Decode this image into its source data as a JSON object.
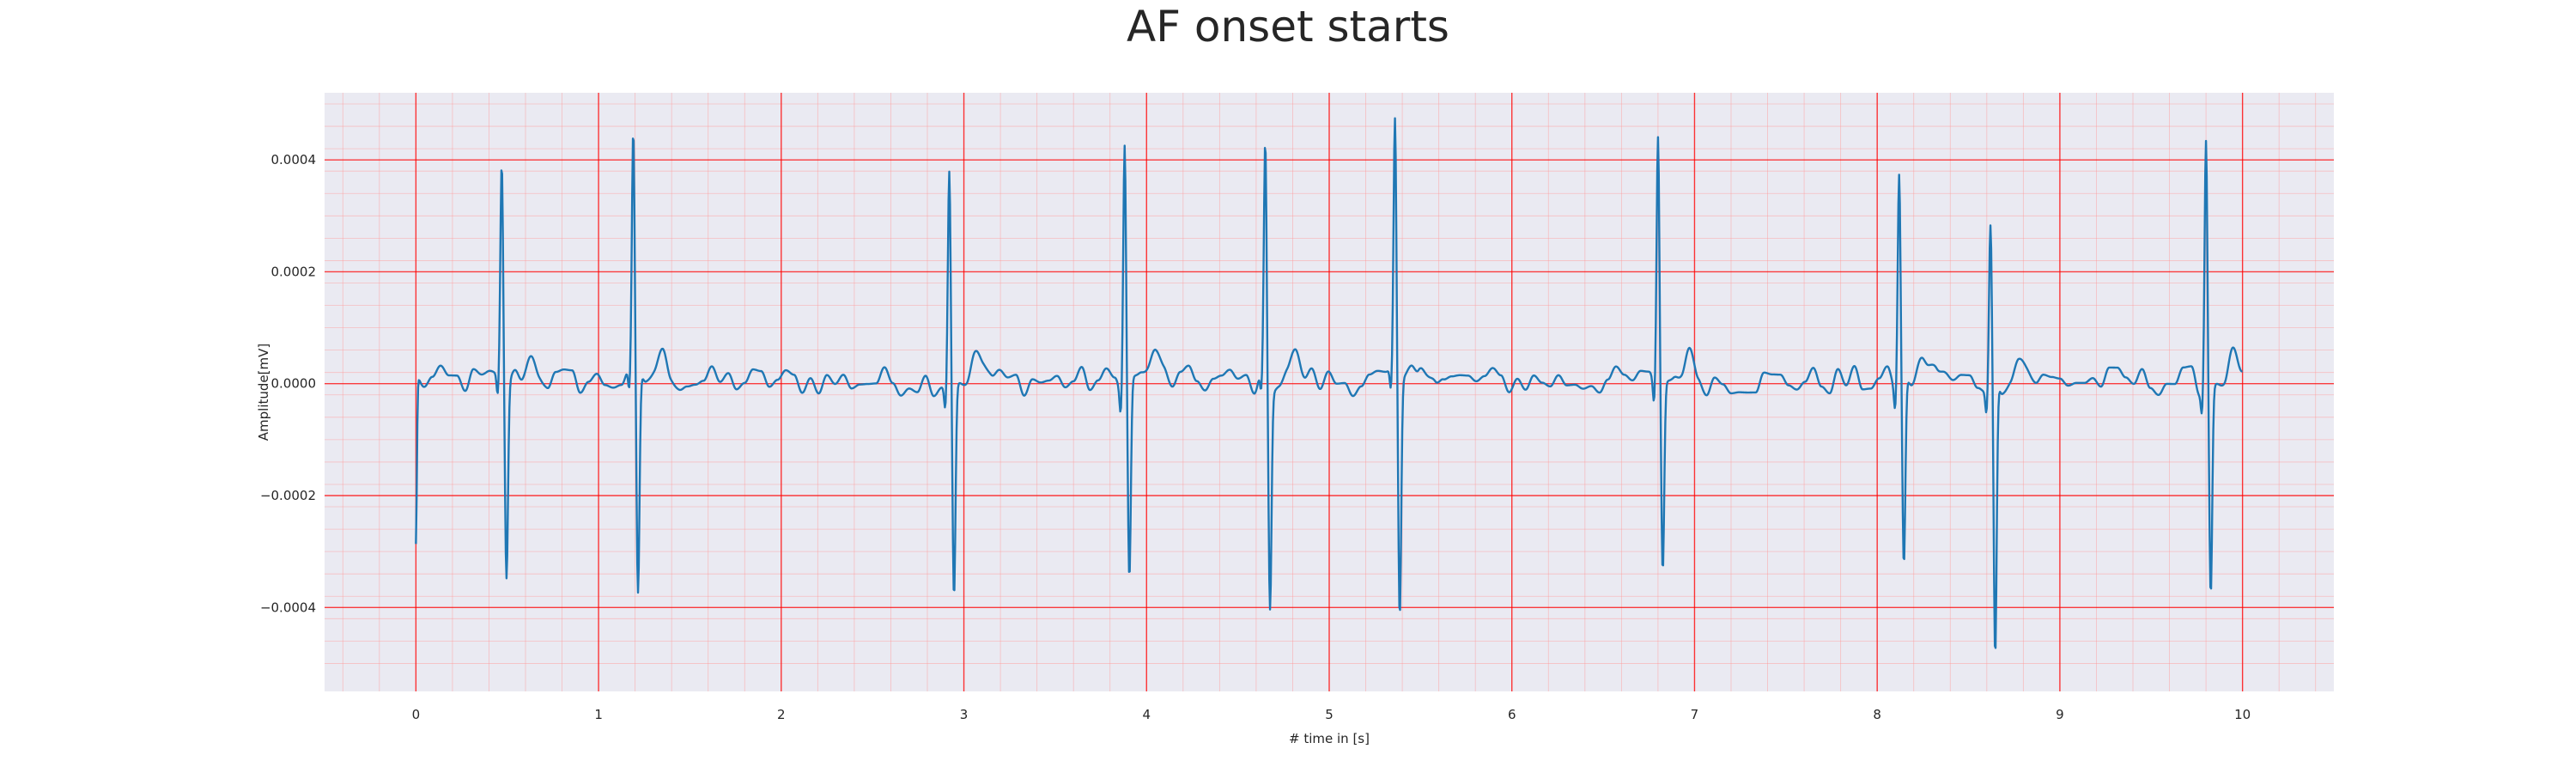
{
  "chart_data": {
    "type": "line",
    "title": "AF onset starts",
    "xlabel": "# time in [s]",
    "ylabel": "Amplitude[mV]",
    "xlim": [
      -0.5,
      10.5
    ],
    "ylim": [
      -0.00055,
      0.00052
    ],
    "xticks": [
      0,
      1,
      2,
      3,
      4,
      5,
      6,
      7,
      8,
      9,
      10
    ],
    "yticks": [
      -0.0004,
      -0.0002,
      0.0,
      0.0002,
      0.0004
    ],
    "ytick_labels": [
      "−0.0004",
      "−0.0002",
      "0.0000",
      "0.0002",
      "0.0004"
    ],
    "grid": true,
    "minor_grid": true,
    "line_color": "#1f77b4",
    "grid_major_color": "#ff0000",
    "grid_minor_color": "#ff9999",
    "background_color": "#eaeaf2",
    "beats": [
      {
        "t": 0.47,
        "r": 0.000405,
        "s": -0.000345
      },
      {
        "t": 1.19,
        "r": 0.000447,
        "s": -0.0004
      },
      {
        "t": 2.92,
        "r": 0.000408,
        "s": -0.000378
      },
      {
        "t": 3.88,
        "r": 0.000465,
        "s": -0.000358
      },
      {
        "t": 4.65,
        "r": 0.000437,
        "s": -0.000388
      },
      {
        "t": 5.36,
        "r": 0.000465,
        "s": -0.000432
      },
      {
        "t": 6.8,
        "r": 0.000467,
        "s": -0.000338
      },
      {
        "t": 8.12,
        "r": 0.000393,
        "s": -0.000342
      },
      {
        "t": 8.62,
        "r": 0.0003,
        "s": -0.000505
      },
      {
        "t": 9.8,
        "r": 0.000458,
        "s": -0.000378
      }
    ],
    "start_value": -0.0003,
    "t_start": 0.0,
    "t_end": 10.0
  }
}
